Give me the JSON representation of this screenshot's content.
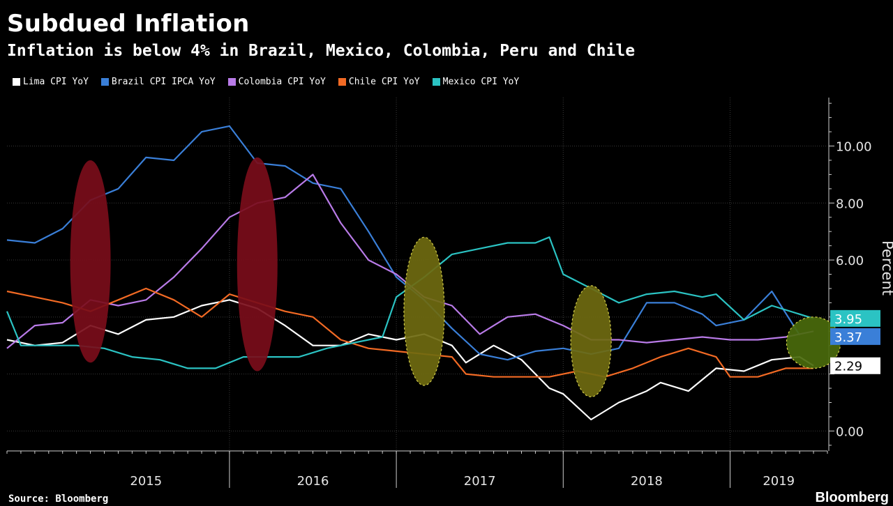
{
  "header": {
    "title": "Subdued Inflation",
    "subtitle": "Inflation is below 4% in Brazil, Mexico, Colombia, Peru and Chile"
  },
  "footer": {
    "source": "Source: Bloomberg",
    "brand": "Bloomberg"
  },
  "chart_data": {
    "type": "line",
    "title": "Subdued Inflation",
    "subtitle": "Inflation is below 4% in Brazil, Mexico, Colombia, Peru and Chile",
    "ylabel": "Percent",
    "ylim": [
      -0.7,
      11.7
    ],
    "yticks": [
      0,
      2,
      4,
      6,
      8,
      10
    ],
    "ytick_labels": [
      "0.00",
      "",
      "",
      "6.00",
      "8.00",
      "10.00"
    ],
    "xlim": [
      "2014-09",
      "2019-08"
    ],
    "xtick_labels": [
      "2015",
      "2016",
      "2017",
      "2018",
      "2019"
    ],
    "grid": true,
    "legend_position": "top-left",
    "series": [
      {
        "name": "Lima CPI YoY",
        "color": "#ffffff",
        "points": [
          [
            "2014-09",
            3.2
          ],
          [
            "2014-11",
            3.0
          ],
          [
            "2015-01",
            3.1
          ],
          [
            "2015-03",
            3.7
          ],
          [
            "2015-05",
            3.4
          ],
          [
            "2015-07",
            3.9
          ],
          [
            "2015-09",
            4.0
          ],
          [
            "2015-11",
            4.4
          ],
          [
            "2016-01",
            4.6
          ],
          [
            "2016-03",
            4.3
          ],
          [
            "2016-05",
            3.7
          ],
          [
            "2016-07",
            3.0
          ],
          [
            "2016-09",
            3.0
          ],
          [
            "2016-11",
            3.4
          ],
          [
            "2017-01",
            3.2
          ],
          [
            "2017-03",
            3.4
          ],
          [
            "2017-05",
            3.0
          ],
          [
            "2017-06",
            2.4
          ],
          [
            "2017-08",
            3.0
          ],
          [
            "2017-10",
            2.5
          ],
          [
            "2017-12",
            1.5
          ],
          [
            "2018-01",
            1.3
          ],
          [
            "2018-03",
            0.4
          ],
          [
            "2018-05",
            1.0
          ],
          [
            "2018-07",
            1.4
          ],
          [
            "2018-08",
            1.7
          ],
          [
            "2018-10",
            1.4
          ],
          [
            "2018-12",
            2.2
          ],
          [
            "2019-02",
            2.1
          ],
          [
            "2019-04",
            2.5
          ],
          [
            "2019-06",
            2.6
          ],
          [
            "2019-07",
            2.29
          ]
        ]
      },
      {
        "name": "Brazil CPI IPCA YoY",
        "color": "#3a7fd8",
        "points": [
          [
            "2014-09",
            6.7
          ],
          [
            "2014-11",
            6.6
          ],
          [
            "2015-01",
            7.1
          ],
          [
            "2015-03",
            8.1
          ],
          [
            "2015-05",
            8.5
          ],
          [
            "2015-07",
            9.6
          ],
          [
            "2015-09",
            9.5
          ],
          [
            "2015-11",
            10.5
          ],
          [
            "2016-01",
            10.7
          ],
          [
            "2016-03",
            9.4
          ],
          [
            "2016-05",
            9.3
          ],
          [
            "2016-07",
            8.7
          ],
          [
            "2016-09",
            8.5
          ],
          [
            "2016-11",
            7.0
          ],
          [
            "2017-01",
            5.4
          ],
          [
            "2017-03",
            4.6
          ],
          [
            "2017-05",
            3.6
          ],
          [
            "2017-07",
            2.7
          ],
          [
            "2017-09",
            2.5
          ],
          [
            "2017-11",
            2.8
          ],
          [
            "2018-01",
            2.9
          ],
          [
            "2018-03",
            2.7
          ],
          [
            "2018-05",
            2.9
          ],
          [
            "2018-07",
            4.5
          ],
          [
            "2018-09",
            4.5
          ],
          [
            "2018-11",
            4.1
          ],
          [
            "2018-12",
            3.7
          ],
          [
            "2019-02",
            3.9
          ],
          [
            "2019-04",
            4.9
          ],
          [
            "2019-06",
            3.37
          ]
        ]
      },
      {
        "name": "Colombia CPI YoY",
        "color": "#b97be8",
        "points": [
          [
            "2014-09",
            2.9
          ],
          [
            "2014-11",
            3.7
          ],
          [
            "2015-01",
            3.8
          ],
          [
            "2015-03",
            4.6
          ],
          [
            "2015-05",
            4.4
          ],
          [
            "2015-07",
            4.6
          ],
          [
            "2015-09",
            5.4
          ],
          [
            "2015-11",
            6.4
          ],
          [
            "2016-01",
            7.5
          ],
          [
            "2016-03",
            8.0
          ],
          [
            "2016-05",
            8.2
          ],
          [
            "2016-07",
            9.0
          ],
          [
            "2016-09",
            7.3
          ],
          [
            "2016-11",
            6.0
          ],
          [
            "2017-01",
            5.5
          ],
          [
            "2017-03",
            4.7
          ],
          [
            "2017-05",
            4.4
          ],
          [
            "2017-07",
            3.4
          ],
          [
            "2017-09",
            4.0
          ],
          [
            "2017-11",
            4.1
          ],
          [
            "2018-01",
            3.7
          ],
          [
            "2018-03",
            3.2
          ],
          [
            "2018-05",
            3.2
          ],
          [
            "2018-07",
            3.1
          ],
          [
            "2018-09",
            3.2
          ],
          [
            "2018-11",
            3.3
          ],
          [
            "2019-01",
            3.2
          ],
          [
            "2019-03",
            3.2
          ],
          [
            "2019-05",
            3.3
          ],
          [
            "2019-07",
            3.5
          ]
        ]
      },
      {
        "name": "Chile CPI YoY",
        "color": "#f26a24",
        "points": [
          [
            "2014-09",
            4.9
          ],
          [
            "2014-11",
            4.7
          ],
          [
            "2015-01",
            4.5
          ],
          [
            "2015-03",
            4.2
          ],
          [
            "2015-05",
            4.6
          ],
          [
            "2015-07",
            5.0
          ],
          [
            "2015-09",
            4.6
          ],
          [
            "2015-11",
            4.0
          ],
          [
            "2016-01",
            4.8
          ],
          [
            "2016-03",
            4.5
          ],
          [
            "2016-05",
            4.2
          ],
          [
            "2016-07",
            4.0
          ],
          [
            "2016-09",
            3.2
          ],
          [
            "2016-11",
            2.9
          ],
          [
            "2017-01",
            2.8
          ],
          [
            "2017-03",
            2.7
          ],
          [
            "2017-05",
            2.6
          ],
          [
            "2017-06",
            2.0
          ],
          [
            "2017-08",
            1.9
          ],
          [
            "2017-10",
            1.9
          ],
          [
            "2017-12",
            1.9
          ],
          [
            "2018-02",
            2.1
          ],
          [
            "2018-04",
            1.9
          ],
          [
            "2018-06",
            2.2
          ],
          [
            "2018-08",
            2.6
          ],
          [
            "2018-10",
            2.9
          ],
          [
            "2018-12",
            2.6
          ],
          [
            "2019-01",
            1.9
          ],
          [
            "2019-03",
            1.9
          ],
          [
            "2019-05",
            2.2
          ],
          [
            "2019-07",
            2.2
          ]
        ]
      },
      {
        "name": "Mexico CPI YoY",
        "color": "#2bc3c3",
        "points": [
          [
            "2014-09",
            4.2
          ],
          [
            "2014-10",
            3.0
          ],
          [
            "2014-12",
            3.0
          ],
          [
            "2015-02",
            3.0
          ],
          [
            "2015-04",
            2.9
          ],
          [
            "2015-06",
            2.6
          ],
          [
            "2015-08",
            2.5
          ],
          [
            "2015-10",
            2.2
          ],
          [
            "2015-12",
            2.2
          ],
          [
            "2016-02",
            2.6
          ],
          [
            "2016-04",
            2.6
          ],
          [
            "2016-06",
            2.6
          ],
          [
            "2016-08",
            2.9
          ],
          [
            "2016-10",
            3.1
          ],
          [
            "2016-12",
            3.3
          ],
          [
            "2017-01",
            4.7
          ],
          [
            "2017-03",
            5.4
          ],
          [
            "2017-05",
            6.2
          ],
          [
            "2017-07",
            6.4
          ],
          [
            "2017-09",
            6.6
          ],
          [
            "2017-11",
            6.6
          ],
          [
            "2017-12",
            6.8
          ],
          [
            "2018-01",
            5.5
          ],
          [
            "2018-03",
            5.0
          ],
          [
            "2018-05",
            4.5
          ],
          [
            "2018-07",
            4.8
          ],
          [
            "2018-09",
            4.9
          ],
          [
            "2018-11",
            4.7
          ],
          [
            "2018-12",
            4.8
          ],
          [
            "2019-02",
            3.9
          ],
          [
            "2019-04",
            4.4
          ],
          [
            "2019-07",
            3.95
          ]
        ]
      }
    ],
    "last_value_labels": [
      {
        "series": "Mexico CPI YoY",
        "value": 3.95,
        "text": "3.95",
        "bg": "#2bc3c3",
        "fg": "#ffffff"
      },
      {
        "series": "Brazil CPI IPCA YoY",
        "value": 3.37,
        "text": "3.37",
        "bg": "#3a7fd8",
        "fg": "#ffffff"
      },
      {
        "series": "Lima CPI YoY",
        "value": 2.29,
        "text": "2.29",
        "bg": "#ffffff",
        "fg": "#000000"
      }
    ],
    "annotations": [
      {
        "shape": "ellipse",
        "at": "2015-03",
        "y": [
          2.4,
          9.5
        ],
        "color": "#7a0d1a"
      },
      {
        "shape": "ellipse",
        "at": "2016-03",
        "y": [
          2.1,
          9.6
        ],
        "color": "#7a0d1a"
      },
      {
        "shape": "ellipse",
        "at": "2017-03",
        "y": [
          1.6,
          6.8
        ],
        "color": "#6f6a10"
      },
      {
        "shape": "ellipse",
        "at": "2018-03",
        "y": [
          1.2,
          5.1
        ],
        "color": "#6f6a10"
      },
      {
        "shape": "circle",
        "at": "2019-07",
        "y": [
          2.2,
          4.0
        ],
        "color": "#4a6a0c"
      }
    ]
  }
}
